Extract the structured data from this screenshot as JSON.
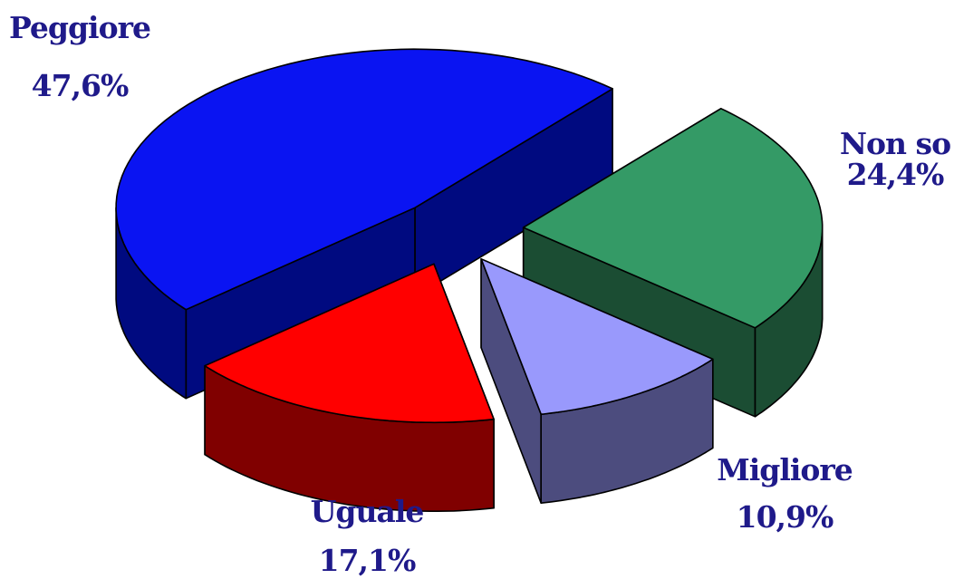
{
  "chart_data": {
    "type": "pie",
    "variant": "3d-exploded",
    "categories": [
      "Peggiore",
      "Non so",
      "Migliore",
      "Uguale"
    ],
    "values": [
      47.6,
      24.4,
      10.9,
      17.1
    ],
    "value_labels": [
      "47,6%",
      "24,4%",
      "10,9%",
      "17,1%"
    ],
    "colors": [
      "#0a14f2",
      "#349a66",
      "#9999fc",
      "#ff0000"
    ],
    "side_colors": [
      "#000a80",
      "#1b4d33",
      "#4c4c7e",
      "#800000"
    ],
    "title": "",
    "legend": "none",
    "grid": false
  }
}
